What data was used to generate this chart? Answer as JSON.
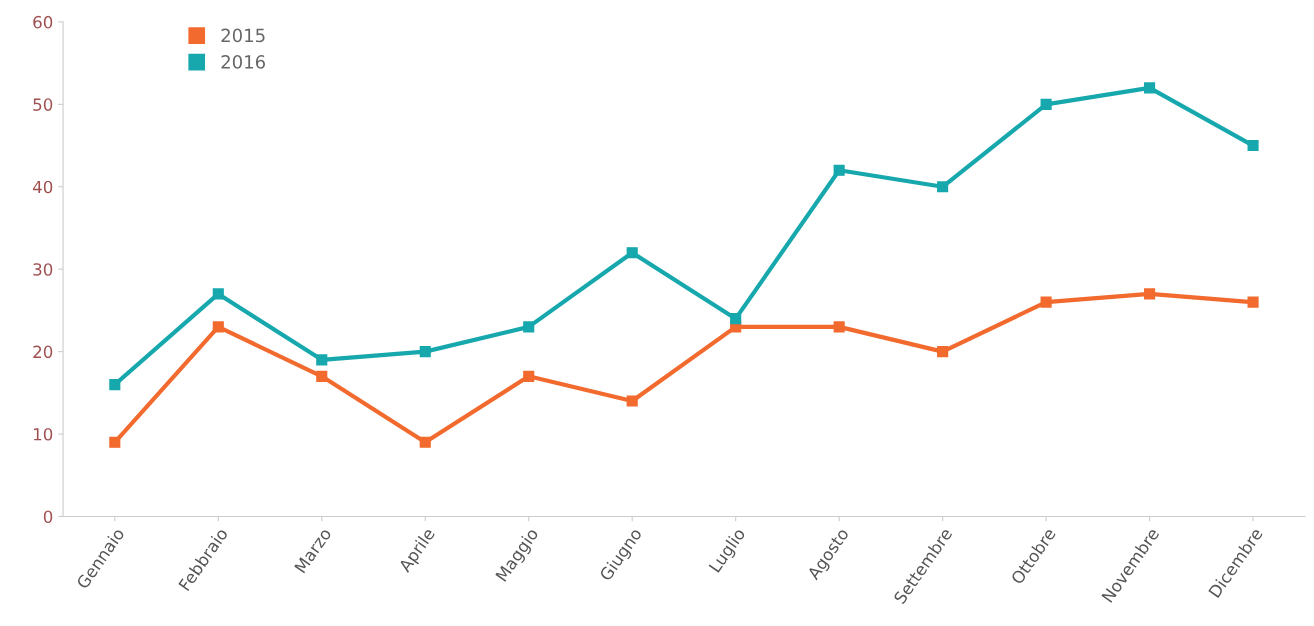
{
  "chart_data": {
    "type": "line",
    "categories": [
      "Gennaio",
      "Febbraio",
      "Marzo",
      "Aprile",
      "Maggio",
      "Giugno",
      "Luglio",
      "Agosto",
      "Settembre",
      "Ottobre",
      "Novembre",
      "Dicembre"
    ],
    "series": [
      {
        "name": "2015",
        "color": "#f26a2e",
        "values": [
          9,
          23,
          17,
          9,
          17,
          14,
          23,
          23,
          20,
          26,
          27,
          26
        ]
      },
      {
        "name": "2016",
        "color": "#17a8ad",
        "values": [
          16,
          27,
          19,
          20,
          23,
          32,
          24,
          42,
          40,
          50,
          52,
          45
        ]
      }
    ],
    "ylim": [
      0,
      60
    ],
    "yticks": [
      0,
      10,
      20,
      30,
      40,
      50,
      60
    ],
    "grid": false,
    "legend": "top left",
    "marker": "square",
    "line_style": "solid"
  }
}
